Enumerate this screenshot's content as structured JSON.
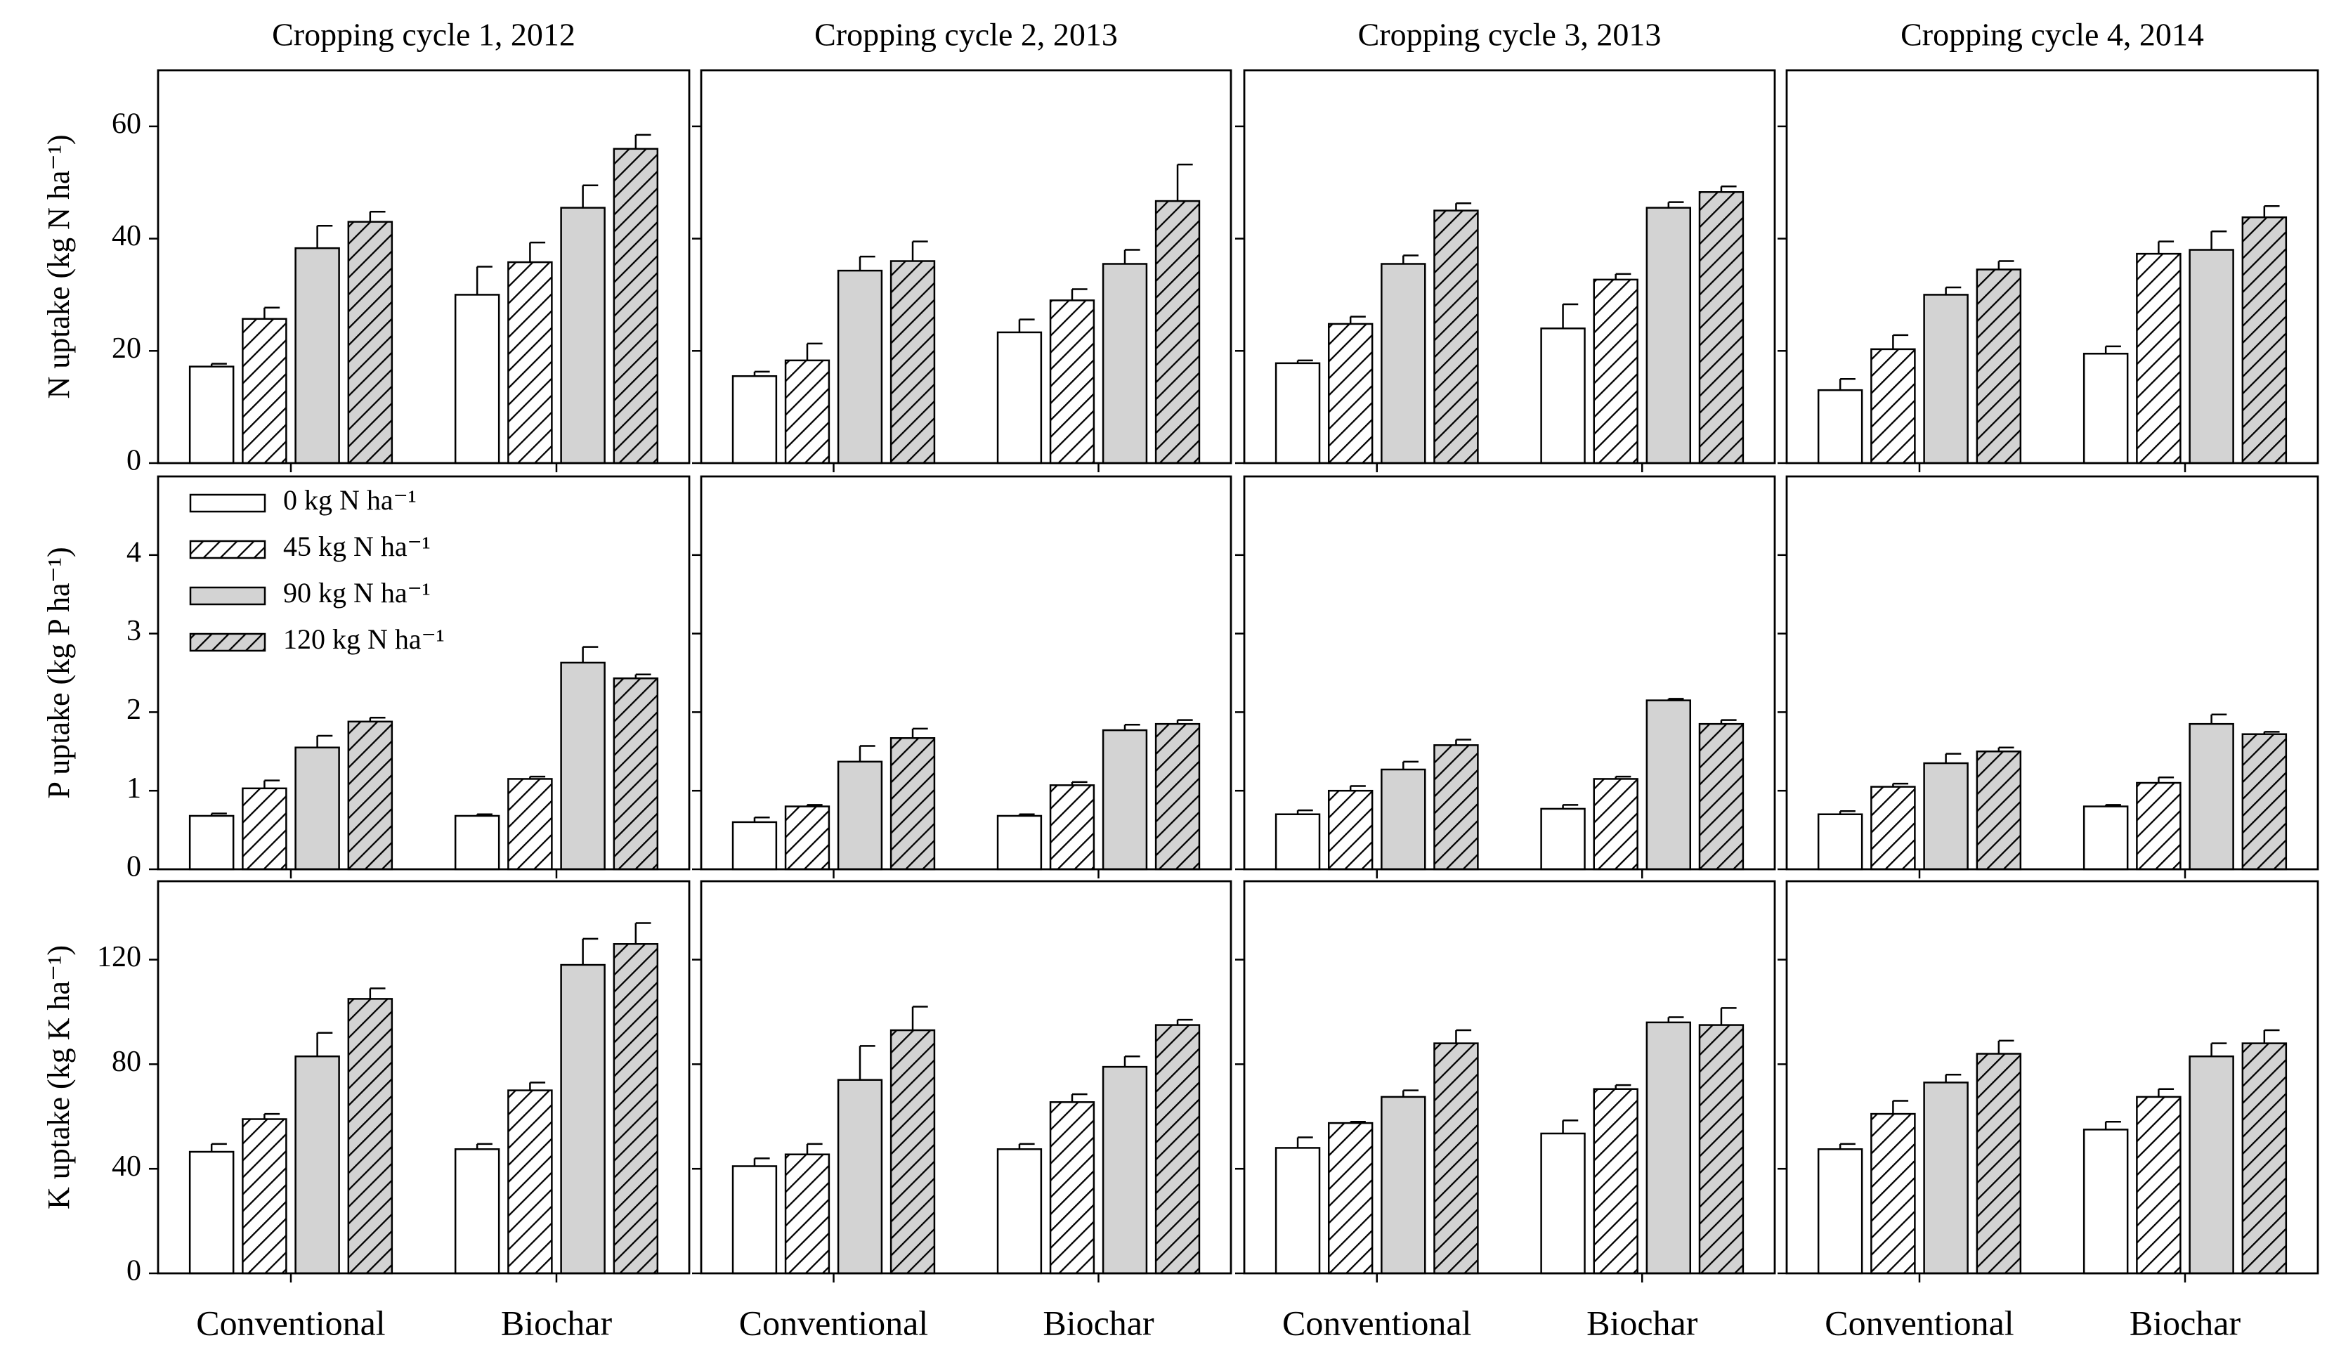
{
  "chart_data": [
    {
      "type": "bar",
      "title": "Cropping cycle 1, 2012",
      "ylabel": "N uptake (kg N ha⁻¹)",
      "categories": [
        null,
        null
      ],
      "tick_labels": true,
      "ylim": [
        0,
        70
      ],
      "yticks": [
        0,
        20,
        40,
        60
      ],
      "series": [
        {
          "color": "#ffffff",
          "hatch": false,
          "values": [
            17.2,
            30.0
          ],
          "errors": [
            0.5,
            5
          ]
        },
        {
          "color": "#ffffff",
          "hatch": true,
          "values": [
            25.7,
            35.8
          ],
          "errors": [
            2,
            3.5
          ]
        },
        {
          "color": "#d3d3d3",
          "hatch": false,
          "values": [
            38.3,
            45.5
          ],
          "errors": [
            4,
            4
          ]
        },
        {
          "color": "#d3d3d3",
          "hatch": true,
          "values": [
            43.0,
            56.0
          ],
          "errors": [
            1.8,
            2.5
          ]
        }
      ]
    },
    {
      "type": "bar",
      "title": "Cropping cycle 2, 2013",
      "categories": [
        null,
        null
      ],
      "tick_labels": false,
      "ylim": [
        0,
        70
      ],
      "yticks": [
        0,
        20,
        40,
        60
      ],
      "series": [
        {
          "color": "#ffffff",
          "hatch": false,
          "values": [
            15.5,
            23.3
          ],
          "errors": [
            0.8,
            2.3
          ]
        },
        {
          "color": "#ffffff",
          "hatch": true,
          "values": [
            18.3,
            29.0
          ],
          "errors": [
            3,
            2
          ]
        },
        {
          "color": "#d3d3d3",
          "hatch": false,
          "values": [
            34.3,
            35.5
          ],
          "errors": [
            2.5,
            2.5
          ]
        },
        {
          "color": "#d3d3d3",
          "hatch": true,
          "values": [
            36.0,
            46.7
          ],
          "errors": [
            3.5,
            6.5
          ]
        }
      ]
    },
    {
      "type": "bar",
      "title": "Cropping cycle 3, 2013",
      "categories": [
        null,
        null
      ],
      "tick_labels": false,
      "ylim": [
        0,
        70
      ],
      "yticks": [
        0,
        20,
        40,
        60
      ],
      "series": [
        {
          "color": "#ffffff",
          "hatch": false,
          "values": [
            17.8,
            24.0
          ],
          "errors": [
            0.5,
            4.3
          ]
        },
        {
          "color": "#ffffff",
          "hatch": true,
          "values": [
            24.8,
            32.7
          ],
          "errors": [
            1.3,
            1
          ]
        },
        {
          "color": "#d3d3d3",
          "hatch": false,
          "values": [
            35.5,
            45.5
          ],
          "errors": [
            1.5,
            1
          ]
        },
        {
          "color": "#d3d3d3",
          "hatch": true,
          "values": [
            45.0,
            48.3
          ],
          "errors": [
            1.3,
            1
          ]
        }
      ]
    },
    {
      "type": "bar",
      "title": "Cropping cycle 4, 2014",
      "categories": [
        null,
        null
      ],
      "tick_labels": false,
      "ylim": [
        0,
        70
      ],
      "yticks": [
        0,
        20,
        40,
        60
      ],
      "series": [
        {
          "color": "#ffffff",
          "hatch": false,
          "values": [
            13.0,
            19.5
          ],
          "errors": [
            2,
            1.3
          ]
        },
        {
          "color": "#ffffff",
          "hatch": true,
          "values": [
            20.3,
            37.3
          ],
          "errors": [
            2.5,
            2.2
          ]
        },
        {
          "color": "#d3d3d3",
          "hatch": false,
          "values": [
            30.0,
            38.0
          ],
          "errors": [
            1.3,
            3.3
          ]
        },
        {
          "color": "#d3d3d3",
          "hatch": true,
          "values": [
            34.5,
            43.8
          ],
          "errors": [
            1.5,
            2
          ]
        }
      ]
    },
    {
      "type": "bar",
      "ylabel": "P uptake (kg P ha⁻¹)",
      "categories": [
        null,
        null
      ],
      "tick_labels": true,
      "legend": "upper left",
      "ylim": [
        0,
        5
      ],
      "yticks": [
        0,
        1,
        2,
        3,
        4
      ],
      "series": [
        {
          "name": "0 kg N ha⁻¹",
          "color": "#ffffff",
          "hatch": false,
          "values": [
            0.68,
            0.68
          ],
          "errors": [
            0.03,
            0.02
          ]
        },
        {
          "name": "45 kg N ha⁻¹",
          "color": "#ffffff",
          "hatch": true,
          "values": [
            1.03,
            1.15
          ],
          "errors": [
            0.1,
            0.03
          ]
        },
        {
          "name": "90 kg N ha⁻¹",
          "color": "#d3d3d3",
          "hatch": false,
          "values": [
            1.55,
            2.63
          ],
          "errors": [
            0.15,
            0.2
          ]
        },
        {
          "name": "120 kg N ha⁻¹",
          "color": "#d3d3d3",
          "hatch": true,
          "values": [
            1.88,
            2.43
          ],
          "errors": [
            0.05,
            0.05
          ]
        }
      ]
    },
    {
      "type": "bar",
      "categories": [
        null,
        null
      ],
      "tick_labels": false,
      "ylim": [
        0,
        5
      ],
      "yticks": [
        0,
        1,
        2,
        3,
        4
      ],
      "series": [
        {
          "color": "#ffffff",
          "hatch": false,
          "values": [
            0.6,
            0.68
          ],
          "errors": [
            0.06,
            0.02
          ]
        },
        {
          "color": "#ffffff",
          "hatch": true,
          "values": [
            0.8,
            1.07
          ],
          "errors": [
            0.02,
            0.04
          ]
        },
        {
          "color": "#d3d3d3",
          "hatch": false,
          "values": [
            1.37,
            1.77
          ],
          "errors": [
            0.2,
            0.07
          ]
        },
        {
          "color": "#d3d3d3",
          "hatch": true,
          "values": [
            1.67,
            1.85
          ],
          "errors": [
            0.12,
            0.05
          ]
        }
      ]
    },
    {
      "type": "bar",
      "categories": [
        null,
        null
      ],
      "tick_labels": false,
      "ylim": [
        0,
        5
      ],
      "yticks": [
        0,
        1,
        2,
        3,
        4
      ],
      "series": [
        {
          "color": "#ffffff",
          "hatch": false,
          "values": [
            0.7,
            0.77
          ],
          "errors": [
            0.05,
            0.05
          ]
        },
        {
          "color": "#ffffff",
          "hatch": true,
          "values": [
            1.0,
            1.15
          ],
          "errors": [
            0.06,
            0.03
          ]
        },
        {
          "color": "#d3d3d3",
          "hatch": false,
          "values": [
            1.27,
            2.15
          ],
          "errors": [
            0.1,
            0.02
          ]
        },
        {
          "color": "#d3d3d3",
          "hatch": true,
          "values": [
            1.58,
            1.85
          ],
          "errors": [
            0.07,
            0.05
          ]
        }
      ]
    },
    {
      "type": "bar",
      "categories": [
        null,
        null
      ],
      "tick_labels": false,
      "ylim": [
        0,
        5
      ],
      "yticks": [
        0,
        1,
        2,
        3,
        4
      ],
      "series": [
        {
          "color": "#ffffff",
          "hatch": false,
          "values": [
            0.7,
            0.8
          ],
          "errors": [
            0.04,
            0.02
          ]
        },
        {
          "color": "#ffffff",
          "hatch": true,
          "values": [
            1.05,
            1.1
          ],
          "errors": [
            0.04,
            0.07
          ]
        },
        {
          "color": "#d3d3d3",
          "hatch": false,
          "values": [
            1.35,
            1.85
          ],
          "errors": [
            0.12,
            0.12
          ]
        },
        {
          "color": "#d3d3d3",
          "hatch": true,
          "values": [
            1.5,
            1.72
          ],
          "errors": [
            0.05,
            0.03
          ]
        }
      ]
    },
    {
      "type": "bar",
      "ylabel": "K uptake (kg K ha⁻¹)",
      "categories": [
        "Conventional",
        "Biochar"
      ],
      "tick_labels": true,
      "ylim": [
        0,
        150
      ],
      "yticks": [
        0,
        40,
        80,
        120
      ],
      "series": [
        {
          "color": "#ffffff",
          "hatch": false,
          "values": [
            46.5,
            47.5
          ],
          "errors": [
            3,
            2
          ]
        },
        {
          "color": "#ffffff",
          "hatch": true,
          "values": [
            59,
            70
          ],
          "errors": [
            2,
            3
          ]
        },
        {
          "color": "#d3d3d3",
          "hatch": false,
          "values": [
            83,
            118
          ],
          "errors": [
            9,
            10
          ]
        },
        {
          "color": "#d3d3d3",
          "hatch": true,
          "values": [
            105,
            126
          ],
          "errors": [
            4,
            8
          ]
        }
      ]
    },
    {
      "type": "bar",
      "categories": [
        "Conventional",
        "Biochar"
      ],
      "tick_labels": false,
      "ylim": [
        0,
        150
      ],
      "yticks": [
        0,
        40,
        80,
        120
      ],
      "series": [
        {
          "color": "#ffffff",
          "hatch": false,
          "values": [
            41,
            47.5
          ],
          "errors": [
            3,
            2
          ]
        },
        {
          "color": "#ffffff",
          "hatch": true,
          "values": [
            45.5,
            65.5
          ],
          "errors": [
            4,
            3
          ]
        },
        {
          "color": "#d3d3d3",
          "hatch": false,
          "values": [
            74,
            79
          ],
          "errors": [
            13,
            4
          ]
        },
        {
          "color": "#d3d3d3",
          "hatch": true,
          "values": [
            93,
            95
          ],
          "errors": [
            9,
            2
          ]
        }
      ]
    },
    {
      "type": "bar",
      "categories": [
        "Conventional",
        "Biochar"
      ],
      "tick_labels": false,
      "ylim": [
        0,
        150
      ],
      "yticks": [
        0,
        40,
        80,
        120
      ],
      "series": [
        {
          "color": "#ffffff",
          "hatch": false,
          "values": [
            48,
            53.5
          ],
          "errors": [
            4,
            5
          ]
        },
        {
          "color": "#ffffff",
          "hatch": true,
          "values": [
            57.5,
            70.5
          ],
          "errors": [
            0.5,
            1.5
          ]
        },
        {
          "color": "#d3d3d3",
          "hatch": false,
          "values": [
            67.5,
            96
          ],
          "errors": [
            2.5,
            2
          ]
        },
        {
          "color": "#d3d3d3",
          "hatch": true,
          "values": [
            88,
            95
          ],
          "errors": [
            5,
            6.5
          ]
        }
      ]
    },
    {
      "type": "bar",
      "categories": [
        "Conventional",
        "Biochar"
      ],
      "tick_labels": false,
      "ylim": [
        0,
        150
      ],
      "yticks": [
        0,
        40,
        80,
        120
      ],
      "series": [
        {
          "color": "#ffffff",
          "hatch": false,
          "values": [
            47.5,
            55
          ],
          "errors": [
            2,
            3
          ]
        },
        {
          "color": "#ffffff",
          "hatch": true,
          "values": [
            61,
            67.5
          ],
          "errors": [
            5,
            3
          ]
        },
        {
          "color": "#d3d3d3",
          "hatch": false,
          "values": [
            73,
            83
          ],
          "errors": [
            3,
            5
          ]
        },
        {
          "color": "#d3d3d3",
          "hatch": true,
          "values": [
            84,
            88
          ],
          "errors": [
            5,
            5
          ]
        }
      ]
    }
  ]
}
